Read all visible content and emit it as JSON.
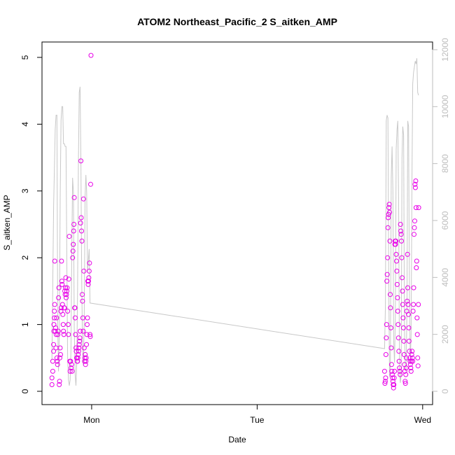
{
  "chart_data": {
    "type": "scatter",
    "title": "ATOM2 Northeast_Pacific_2 S_aitken_AMP",
    "xlabel": "Date",
    "ylabel": "S_aitken_AMP",
    "x_ticks": [
      {
        "label": "Mon",
        "value": 1.0
      },
      {
        "label": "Tue",
        "value": 2.0
      },
      {
        "label": "Wed",
        "value": 3.0
      }
    ],
    "ylim": [
      0,
      5.2
    ],
    "y_ticks": [
      0,
      1,
      2,
      3,
      4,
      5
    ],
    "y2lim": [
      0,
      12000
    ],
    "y2_ticks": [
      0,
      2000,
      4000,
      6000,
      8000,
      10000,
      12000
    ],
    "colors": {
      "points": "#e800e8",
      "line": "#c8c8c8",
      "axis": "#000000",
      "axis2": "#bdbdbd"
    },
    "series": [
      {
        "kind": "points",
        "axis": "left",
        "points": [
          [
            0.76,
            0.1
          ],
          [
            0.76,
            0.2
          ],
          [
            0.765,
            0.3
          ],
          [
            0.765,
            0.45
          ],
          [
            0.77,
            0.6
          ],
          [
            0.77,
            0.7
          ],
          [
            0.772,
            0.9
          ],
          [
            0.772,
            1.0
          ],
          [
            0.775,
            1.1
          ],
          [
            0.775,
            1.2
          ],
          [
            0.777,
            1.3
          ],
          [
            0.777,
            1.95
          ],
          [
            0.78,
            0.9
          ],
          [
            0.782,
            0.95
          ],
          [
            0.784,
            0.65
          ],
          [
            0.786,
            0.85
          ],
          [
            0.788,
            1.1
          ],
          [
            0.79,
            0.5
          ],
          [
            0.792,
            0.45
          ],
          [
            0.794,
            0.4
          ],
          [
            0.796,
            0.85
          ],
          [
            0.798,
            0.9
          ],
          [
            0.8,
            1.4
          ],
          [
            0.802,
            1.55
          ],
          [
            0.804,
            0.1
          ],
          [
            0.806,
            0.15
          ],
          [
            0.808,
            0.5
          ],
          [
            0.81,
            0.65
          ],
          [
            0.812,
            0.55
          ],
          [
            0.814,
            1.2
          ],
          [
            0.816,
            1.25
          ],
          [
            0.818,
            1.95
          ],
          [
            0.82,
            1.65
          ],
          [
            0.822,
            1.6
          ],
          [
            0.824,
            1.3
          ],
          [
            0.826,
            1.15
          ],
          [
            0.828,
            1.0
          ],
          [
            0.83,
            0.9
          ],
          [
            0.832,
            0.85
          ],
          [
            0.834,
            1.25
          ],
          [
            0.836,
            1.25
          ],
          [
            0.838,
            1.5
          ],
          [
            0.84,
            1.45
          ],
          [
            0.842,
            1.55
          ],
          [
            0.844,
            1.7
          ],
          [
            0.846,
            1.4
          ],
          [
            0.848,
            1.45
          ],
          [
            0.85,
            1.5
          ],
          [
            0.852,
            1.55
          ],
          [
            0.855,
            1.2
          ],
          [
            0.858,
            1.0
          ],
          [
            0.86,
            0.85
          ],
          [
            0.862,
            1.68
          ],
          [
            0.865,
            2.32
          ],
          [
            0.868,
            0.45
          ],
          [
            0.87,
            0.3
          ],
          [
            0.873,
            0.45
          ],
          [
            0.876,
            0.35
          ],
          [
            0.879,
            0.4
          ],
          [
            0.882,
            0.3
          ],
          [
            0.885,
            2.0
          ],
          [
            0.887,
            2.1
          ],
          [
            0.889,
            2.2
          ],
          [
            0.891,
            2.4
          ],
          [
            0.893,
            2.5
          ],
          [
            0.895,
            2.9
          ],
          [
            0.897,
            1.25
          ],
          [
            0.899,
            1.25
          ],
          [
            0.901,
            1.1
          ],
          [
            0.903,
            0.85
          ],
          [
            0.905,
            0.65
          ],
          [
            0.907,
            0.6
          ],
          [
            0.909,
            0.5
          ],
          [
            0.911,
            0.5
          ],
          [
            0.913,
            0.45
          ],
          [
            0.915,
            0.45
          ],
          [
            0.917,
            0.5
          ],
          [
            0.919,
            0.55
          ],
          [
            0.921,
            0.6
          ],
          [
            0.923,
            0.65
          ],
          [
            0.925,
            0.7
          ],
          [
            0.927,
            0.75
          ],
          [
            0.929,
            0.8
          ],
          [
            0.931,
            0.9
          ],
          [
            0.933,
            2.52
          ],
          [
            0.935,
            3.45
          ],
          [
            0.937,
            2.6
          ],
          [
            0.939,
            2.4
          ],
          [
            0.941,
            2.25
          ],
          [
            0.943,
            1.45
          ],
          [
            0.945,
            1.35
          ],
          [
            0.947,
            1.1
          ],
          [
            0.949,
            0.9
          ],
          [
            0.951,
            2.88
          ],
          [
            0.953,
            1.8
          ],
          [
            0.955,
            0.65
          ],
          [
            0.957,
            0.45
          ],
          [
            0.959,
            0.5
          ],
          [
            0.961,
            0.55
          ],
          [
            0.963,
            0.4
          ],
          [
            0.965,
            0.45
          ],
          [
            0.967,
            0.5
          ],
          [
            0.969,
            0.7
          ],
          [
            0.971,
            0.85
          ],
          [
            0.973,
            1.0
          ],
          [
            0.975,
            1.1
          ],
          [
            0.977,
            1.65
          ],
          [
            0.979,
            1.6
          ],
          [
            0.981,
            1.65
          ],
          [
            0.983,
            1.7
          ],
          [
            0.985,
            1.8
          ],
          [
            0.987,
            1.92
          ],
          [
            0.99,
            0.85
          ],
          [
            0.992,
            0.82
          ],
          [
            0.994,
            3.1
          ],
          [
            0.996,
            5.03
          ],
          [
            2.77,
            0.3
          ],
          [
            2.772,
            0.12
          ],
          [
            2.774,
            0.15
          ],
          [
            2.776,
            0.2
          ],
          [
            2.778,
            0.55
          ],
          [
            2.78,
            0.8
          ],
          [
            2.782,
            1.0
          ],
          [
            2.784,
            1.65
          ],
          [
            2.786,
            1.75
          ],
          [
            2.788,
            2.0
          ],
          [
            2.79,
            2.45
          ],
          [
            2.792,
            2.6
          ],
          [
            2.794,
            2.65
          ],
          [
            2.796,
            2.75
          ],
          [
            2.798,
            2.8
          ],
          [
            2.8,
            2.68
          ],
          [
            2.802,
            2.25
          ],
          [
            2.804,
            1.45
          ],
          [
            2.806,
            1.25
          ],
          [
            2.808,
            0.95
          ],
          [
            2.81,
            0.65
          ],
          [
            2.812,
            0.4
          ],
          [
            2.814,
            0.3
          ],
          [
            2.816,
            0.25
          ],
          [
            2.818,
            0.2
          ],
          [
            2.82,
            0.15
          ],
          [
            2.822,
            0.1
          ],
          [
            2.824,
            0.05
          ],
          [
            2.826,
            0.1
          ],
          [
            2.828,
            0.2
          ],
          [
            2.83,
            0.3
          ],
          [
            2.832,
            2.2
          ],
          [
            2.834,
            2.25
          ],
          [
            2.836,
            2.2
          ],
          [
            2.838,
            2.25
          ],
          [
            2.84,
            2.05
          ],
          [
            2.842,
            1.95
          ],
          [
            2.844,
            1.8
          ],
          [
            2.846,
            1.6
          ],
          [
            2.848,
            1.4
          ],
          [
            2.85,
            1.2
          ],
          [
            2.852,
            1.0
          ],
          [
            2.854,
            0.8
          ],
          [
            2.856,
            0.6
          ],
          [
            2.858,
            0.45
          ],
          [
            2.86,
            0.35
          ],
          [
            2.862,
            0.3
          ],
          [
            2.864,
            0.25
          ],
          [
            2.866,
            2.5
          ],
          [
            2.868,
            2.4
          ],
          [
            2.87,
            2.35
          ],
          [
            2.872,
            2.25
          ],
          [
            2.874,
            2.0
          ],
          [
            2.876,
            1.7
          ],
          [
            2.878,
            1.5
          ],
          [
            2.88,
            1.3
          ],
          [
            2.882,
            1.1
          ],
          [
            2.884,
            0.95
          ],
          [
            2.886,
            0.75
          ],
          [
            2.888,
            0.55
          ],
          [
            2.89,
            0.4
          ],
          [
            2.892,
            0.3
          ],
          [
            2.894,
            0.15
          ],
          [
            2.896,
            0.12
          ],
          [
            2.898,
            0.25
          ],
          [
            2.9,
            0.35
          ],
          [
            2.902,
            0.5
          ],
          [
            2.904,
            1.2
          ],
          [
            2.906,
            1.35
          ],
          [
            2.908,
            2.05
          ],
          [
            2.91,
            1.55
          ],
          [
            2.912,
            1.3
          ],
          [
            2.914,
            1.15
          ],
          [
            2.916,
            0.95
          ],
          [
            2.918,
            0.75
          ],
          [
            2.92,
            0.6
          ],
          [
            2.922,
            0.5
          ],
          [
            2.924,
            0.45
          ],
          [
            2.926,
            0.4
          ],
          [
            2.928,
            0.35
          ],
          [
            2.93,
            0.3
          ],
          [
            2.932,
            0.45
          ],
          [
            2.934,
            0.55
          ],
          [
            2.936,
            0.6
          ],
          [
            2.938,
            0.5
          ],
          [
            2.94,
            0.45
          ],
          [
            2.942,
            1.2
          ],
          [
            2.944,
            1.3
          ],
          [
            2.946,
            1.55
          ],
          [
            2.948,
            2.35
          ],
          [
            2.95,
            2.45
          ],
          [
            2.952,
            2.55
          ],
          [
            2.954,
            3.1
          ],
          [
            2.956,
            3.05
          ],
          [
            2.958,
            3.15
          ],
          [
            2.96,
            2.75
          ],
          [
            2.962,
            1.85
          ],
          [
            2.964,
            1.95
          ],
          [
            2.966,
            1.1
          ],
          [
            2.968,
            0.85
          ],
          [
            2.97,
            0.5
          ],
          [
            2.972,
            0.38
          ],
          [
            2.974,
            1.3
          ],
          [
            2.976,
            2.75
          ]
        ]
      },
      {
        "kind": "line",
        "axis": "right",
        "points": [
          [
            0.76,
            1100
          ],
          [
            0.77,
            6500
          ],
          [
            0.78,
            9200
          ],
          [
            0.785,
            9700
          ],
          [
            0.79,
            9700
          ],
          [
            0.795,
            2200
          ],
          [
            0.8,
            700
          ],
          [
            0.805,
            2200
          ],
          [
            0.81,
            6800
          ],
          [
            0.815,
            9500
          ],
          [
            0.82,
            10000
          ],
          [
            0.825,
            10000
          ],
          [
            0.83,
            8700
          ],
          [
            0.835,
            8700
          ],
          [
            0.84,
            8600
          ],
          [
            0.845,
            8600
          ],
          [
            0.85,
            4500
          ],
          [
            0.855,
            1200
          ],
          [
            0.86,
            400
          ],
          [
            0.865,
            200
          ],
          [
            0.87,
            400
          ],
          [
            0.875,
            1500
          ],
          [
            0.88,
            5000
          ],
          [
            0.885,
            7500
          ],
          [
            0.89,
            7000
          ],
          [
            0.895,
            2200
          ],
          [
            0.9,
            600
          ],
          [
            0.905,
            200
          ],
          [
            0.91,
            1000
          ],
          [
            0.915,
            3500
          ],
          [
            0.92,
            8000
          ],
          [
            0.925,
            10500
          ],
          [
            0.93,
            10700
          ],
          [
            0.935,
            8000
          ],
          [
            0.94,
            4000
          ],
          [
            0.945,
            1500
          ],
          [
            0.95,
            900
          ],
          [
            0.955,
            2500
          ],
          [
            0.96,
            6800
          ],
          [
            0.965,
            7600
          ],
          [
            0.97,
            7000
          ],
          [
            0.975,
            4200
          ],
          [
            0.98,
            4600
          ],
          [
            0.985,
            5000
          ],
          [
            0.99,
            3100
          ],
          [
            2.77,
            1500
          ],
          [
            2.775,
            3000
          ],
          [
            2.78,
            9500
          ],
          [
            2.785,
            9700
          ],
          [
            2.79,
            9600
          ],
          [
            2.795,
            4000
          ],
          [
            2.8,
            500
          ],
          [
            2.805,
            900
          ],
          [
            2.81,
            7500
          ],
          [
            2.815,
            8600
          ],
          [
            2.82,
            7000
          ],
          [
            2.825,
            1800
          ],
          [
            2.83,
            1000
          ],
          [
            2.835,
            2600
          ],
          [
            2.84,
            8500
          ],
          [
            2.845,
            9200
          ],
          [
            2.85,
            9500
          ],
          [
            2.855,
            6500
          ],
          [
            2.86,
            800
          ],
          [
            2.865,
            300
          ],
          [
            2.87,
            600
          ],
          [
            2.875,
            8200
          ],
          [
            2.88,
            9300
          ],
          [
            2.885,
            9000
          ],
          [
            2.89,
            2200
          ],
          [
            2.895,
            700
          ],
          [
            2.9,
            800
          ],
          [
            2.905,
            3000
          ],
          [
            2.91,
            9500
          ],
          [
            2.915,
            9300
          ],
          [
            2.92,
            3500
          ],
          [
            2.925,
            1000
          ],
          [
            2.93,
            2000
          ],
          [
            2.935,
            7000
          ],
          [
            2.94,
            10800
          ],
          [
            2.945,
            11200
          ],
          [
            2.95,
            11400
          ],
          [
            2.955,
            11600
          ],
          [
            2.96,
            11500
          ],
          [
            2.965,
            11700
          ],
          [
            2.97,
            10500
          ],
          [
            2.975,
            10400
          ]
        ]
      }
    ]
  }
}
